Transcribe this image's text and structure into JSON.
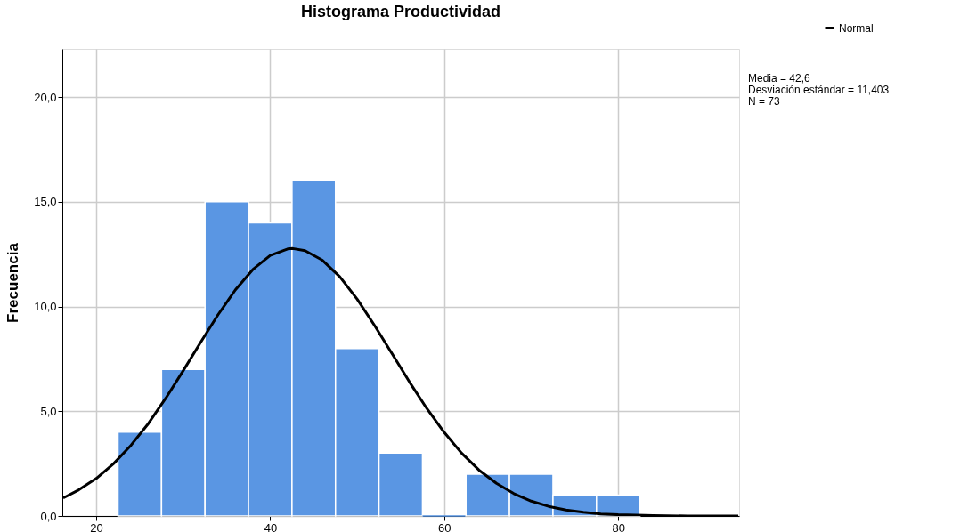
{
  "chart_data": {
    "type": "histogram",
    "title": "Histograma Productividad",
    "ylabel": "Frecuencia",
    "bins": [
      22.5,
      27.5,
      32.5,
      37.5,
      42.5,
      47.5,
      52.5,
      57.5,
      62.5,
      67.5,
      72.5,
      77.5,
      82.5
    ],
    "values": [
      4,
      7,
      15,
      14,
      16,
      8,
      3,
      0,
      2,
      2,
      1,
      1
    ],
    "color": "#5a96e3",
    "series": [
      {
        "type": "line",
        "name": "Normal",
        "color": "#000000",
        "x": [
          16.2,
          18,
          20,
          22,
          24,
          26,
          28,
          30,
          32,
          34,
          36,
          38,
          40,
          42,
          42.6,
          44,
          46,
          48,
          50,
          52,
          54,
          56,
          58,
          60,
          62,
          64,
          66,
          68,
          70,
          72,
          74,
          76,
          78,
          80,
          84,
          88,
          93.8
        ],
        "values": [
          0.86,
          1.25,
          1.79,
          2.5,
          3.38,
          4.42,
          5.63,
          6.94,
          8.29,
          9.61,
          10.8,
          11.77,
          12.44,
          12.75,
          12.77,
          12.67,
          12.21,
          11.42,
          10.35,
          9.09,
          7.75,
          6.4,
          5.13,
          3.99,
          3.0,
          2.19,
          1.56,
          1.07,
          0.71,
          0.46,
          0.29,
          0.18,
          0.1,
          0.06,
          0.02,
          0.0,
          0.0
        ]
      }
    ],
    "xlim": [
      16.1,
      93.9
    ],
    "xticks": [
      20,
      40,
      60,
      80
    ],
    "ylim": [
      0,
      22.3
    ],
    "yticks": [
      {
        "value": 0,
        "label": "0,0"
      },
      {
        "value": 5,
        "label": "5,0"
      },
      {
        "value": 10,
        "label": "10,0"
      },
      {
        "value": 15,
        "label": "15,0"
      },
      {
        "value": 20,
        "label": "20,0"
      }
    ],
    "grid": true,
    "legend": "top right",
    "line_style": "solid",
    "annotations": [
      "Media = 42,6",
      "Desviación estándar = 11,403",
      "N = 73"
    ]
  }
}
